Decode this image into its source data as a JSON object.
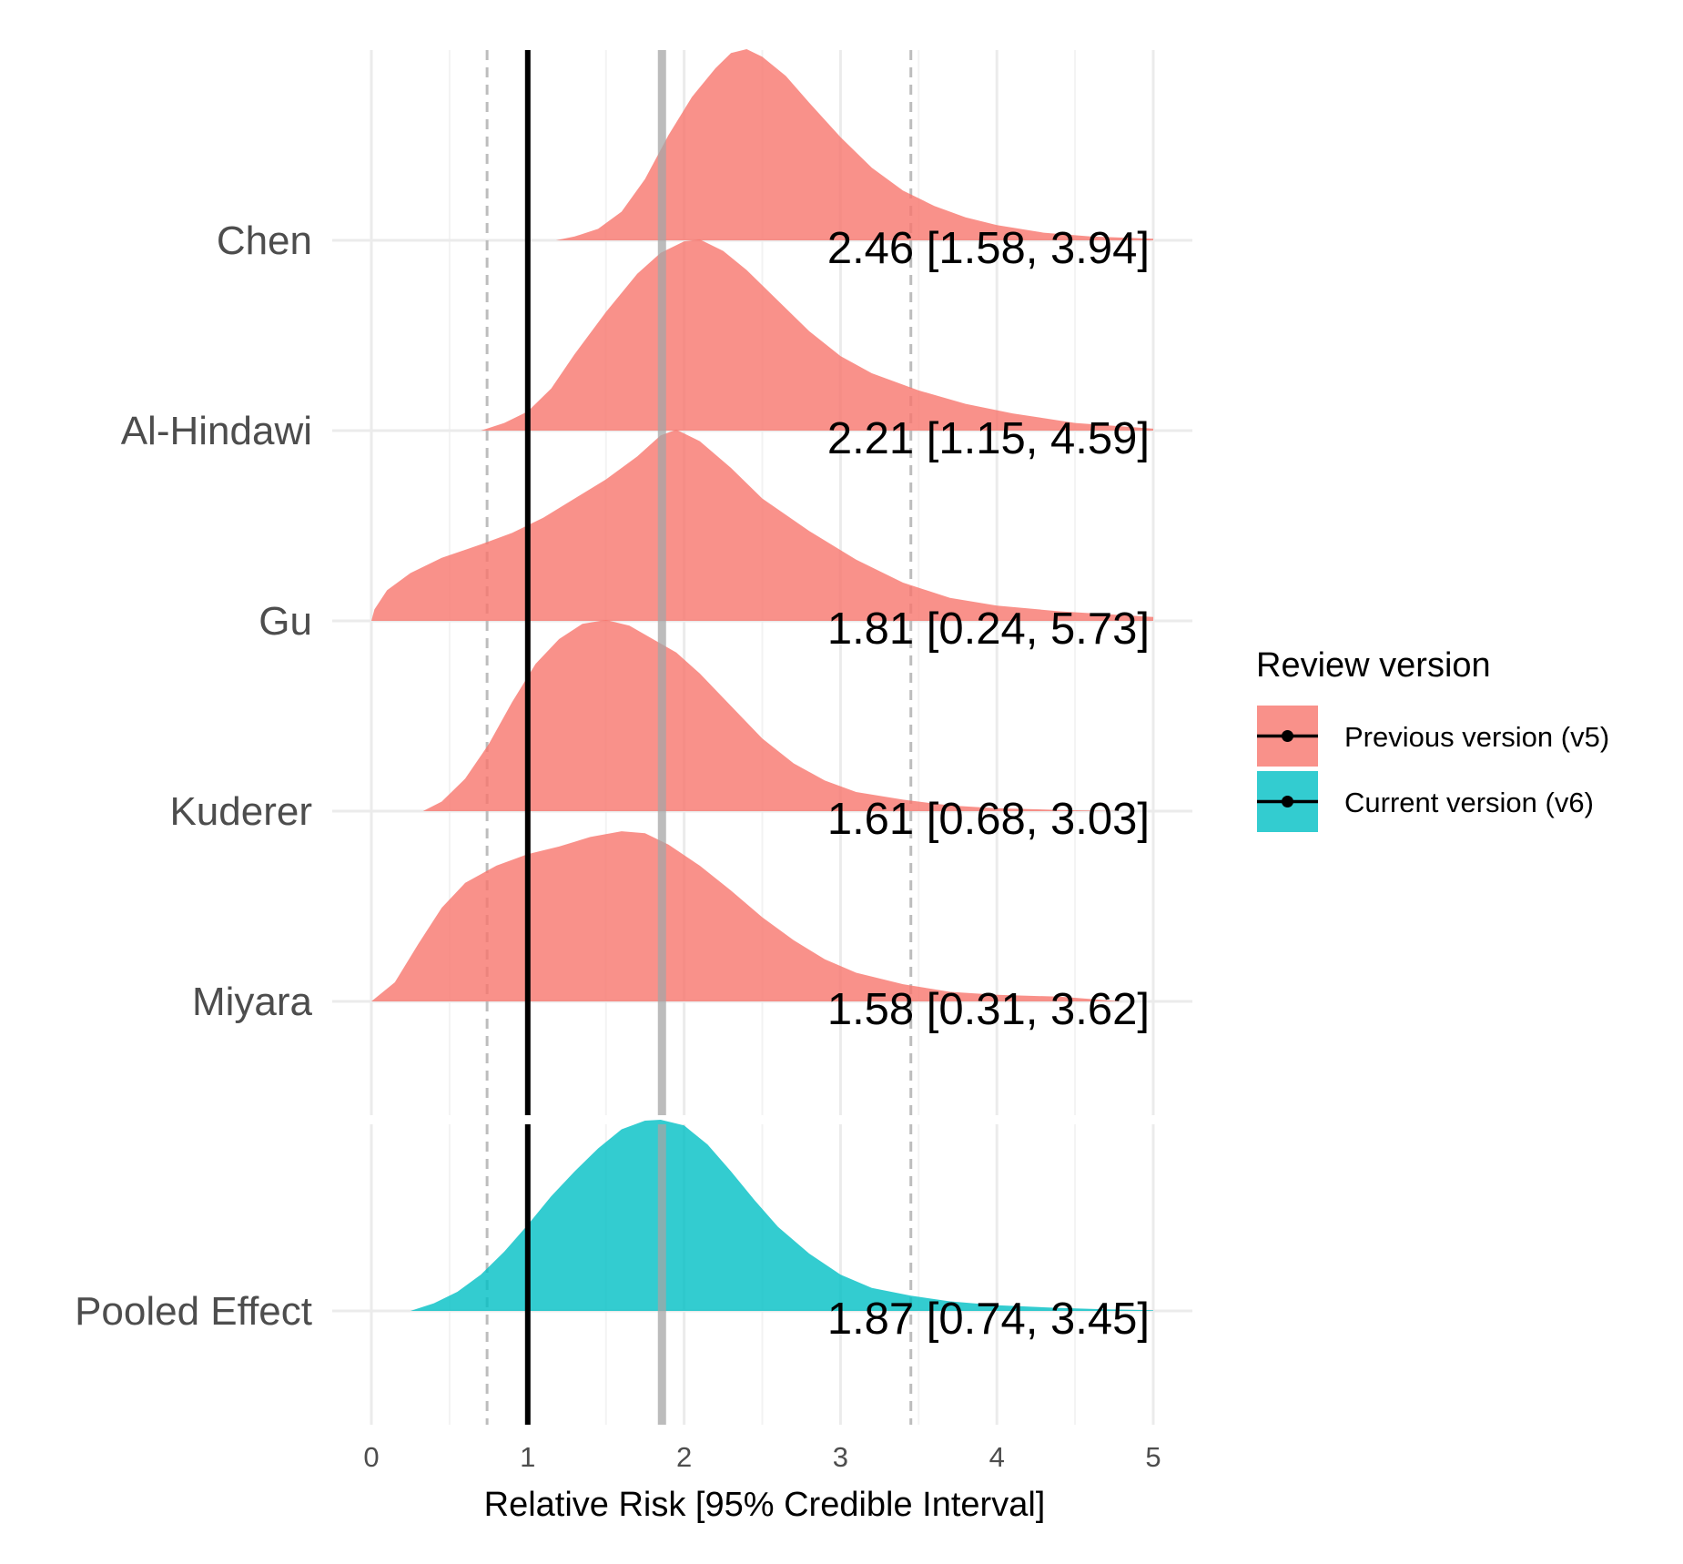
{
  "chart_data": {
    "type": "density-ridge",
    "title": "",
    "xlabel": "Relative Risk [95% Credible Interval]",
    "ylabel": "",
    "xlim": [
      0,
      5
    ],
    "x_ticks": [
      "0",
      "1",
      "2",
      "3",
      "4",
      "5"
    ],
    "grid": true,
    "legend": {
      "title": "Review version",
      "position": "right",
      "entries": [
        {
          "label": "Previous version (v5)",
          "color": "#F8766D"
        },
        {
          "label": "Current version (v6)",
          "color": "#00BFC4"
        }
      ]
    },
    "reference_lines": {
      "null_effect": 1.0,
      "pooled_estimate": 1.87,
      "pooled_ci_lower": 0.74,
      "pooled_ci_upper": 3.45
    },
    "series": [
      {
        "name": "Chen",
        "group": "Previous version (v5)",
        "estimate": 2.46,
        "lower": 1.58,
        "upper": 3.94,
        "label": "2.46 [1.58, 3.94]",
        "range": [
          1.18,
          5.0
        ],
        "density": [
          [
            1.18,
            0.0
          ],
          [
            1.3,
            0.02
          ],
          [
            1.45,
            0.06
          ],
          [
            1.6,
            0.15
          ],
          [
            1.75,
            0.32
          ],
          [
            1.9,
            0.55
          ],
          [
            2.05,
            0.75
          ],
          [
            2.2,
            0.9
          ],
          [
            2.3,
            0.98
          ],
          [
            2.4,
            1.0
          ],
          [
            2.5,
            0.96
          ],
          [
            2.65,
            0.86
          ],
          [
            2.8,
            0.72
          ],
          [
            3.0,
            0.54
          ],
          [
            3.2,
            0.38
          ],
          [
            3.4,
            0.26
          ],
          [
            3.6,
            0.18
          ],
          [
            3.8,
            0.12
          ],
          [
            4.0,
            0.08
          ],
          [
            4.3,
            0.04
          ],
          [
            4.6,
            0.02
          ],
          [
            5.0,
            0.008
          ]
        ]
      },
      {
        "name": "Al-Hindawi",
        "group": "Previous version (v5)",
        "estimate": 2.21,
        "lower": 1.15,
        "upper": 4.59,
        "label": "2.21 [1.15, 4.59]",
        "range": [
          0.7,
          5.0
        ],
        "density": [
          [
            0.7,
            0.0
          ],
          [
            0.85,
            0.04
          ],
          [
            1.0,
            0.1
          ],
          [
            1.15,
            0.22
          ],
          [
            1.3,
            0.4
          ],
          [
            1.5,
            0.62
          ],
          [
            1.7,
            0.82
          ],
          [
            1.85,
            0.93
          ],
          [
            2.0,
            0.99
          ],
          [
            2.1,
            1.0
          ],
          [
            2.25,
            0.94
          ],
          [
            2.4,
            0.84
          ],
          [
            2.6,
            0.68
          ],
          [
            2.8,
            0.52
          ],
          [
            3.0,
            0.39
          ],
          [
            3.2,
            0.3
          ],
          [
            3.5,
            0.21
          ],
          [
            3.8,
            0.14
          ],
          [
            4.1,
            0.09
          ],
          [
            4.5,
            0.04
          ],
          [
            5.0,
            0.01
          ]
        ]
      },
      {
        "name": "Gu",
        "group": "Previous version (v5)",
        "estimate": 1.81,
        "lower": 0.24,
        "upper": 5.73,
        "label": "1.81 [0.24, 5.73]",
        "range": [
          0.0,
          5.0
        ],
        "density": [
          [
            0.0,
            0.0
          ],
          [
            0.02,
            0.06
          ],
          [
            0.1,
            0.16
          ],
          [
            0.25,
            0.25
          ],
          [
            0.45,
            0.33
          ],
          [
            0.7,
            0.4
          ],
          [
            0.9,
            0.46
          ],
          [
            1.1,
            0.54
          ],
          [
            1.3,
            0.64
          ],
          [
            1.5,
            0.74
          ],
          [
            1.7,
            0.86
          ],
          [
            1.85,
            0.97
          ],
          [
            1.95,
            1.0
          ],
          [
            2.1,
            0.94
          ],
          [
            2.3,
            0.8
          ],
          [
            2.5,
            0.64
          ],
          [
            2.8,
            0.47
          ],
          [
            3.1,
            0.32
          ],
          [
            3.4,
            0.2
          ],
          [
            3.7,
            0.12
          ],
          [
            4.0,
            0.08
          ],
          [
            4.4,
            0.05
          ],
          [
            4.7,
            0.035
          ],
          [
            5.0,
            0.02
          ]
        ]
      },
      {
        "name": "Kuderer",
        "group": "Previous version (v5)",
        "estimate": 1.61,
        "lower": 0.68,
        "upper": 3.03,
        "label": "1.61 [0.68, 3.03]",
        "range": [
          0.33,
          4.8
        ],
        "density": [
          [
            0.33,
            0.0
          ],
          [
            0.45,
            0.05
          ],
          [
            0.6,
            0.17
          ],
          [
            0.75,
            0.35
          ],
          [
            0.9,
            0.57
          ],
          [
            1.05,
            0.77
          ],
          [
            1.2,
            0.9
          ],
          [
            1.35,
            0.98
          ],
          [
            1.5,
            1.0
          ],
          [
            1.65,
            0.97
          ],
          [
            1.8,
            0.9
          ],
          [
            1.95,
            0.83
          ],
          [
            2.1,
            0.72
          ],
          [
            2.3,
            0.55
          ],
          [
            2.5,
            0.38
          ],
          [
            2.7,
            0.25
          ],
          [
            2.9,
            0.16
          ],
          [
            3.1,
            0.1
          ],
          [
            3.4,
            0.06
          ],
          [
            3.7,
            0.03
          ],
          [
            4.0,
            0.015
          ],
          [
            4.4,
            0.006
          ],
          [
            4.8,
            0.0
          ]
        ]
      },
      {
        "name": "Miyara",
        "group": "Previous version (v5)",
        "estimate": 1.58,
        "lower": 0.31,
        "upper": 3.62,
        "label": "1.58 [0.31, 3.62]",
        "range": [
          0.0,
          4.8
        ],
        "density": [
          [
            0.0,
            0.0
          ],
          [
            0.15,
            0.1
          ],
          [
            0.3,
            0.3
          ],
          [
            0.45,
            0.49
          ],
          [
            0.6,
            0.62
          ],
          [
            0.8,
            0.71
          ],
          [
            1.0,
            0.77
          ],
          [
            1.2,
            0.81
          ],
          [
            1.4,
            0.86
          ],
          [
            1.6,
            0.89
          ],
          [
            1.75,
            0.88
          ],
          [
            1.9,
            0.82
          ],
          [
            2.1,
            0.71
          ],
          [
            2.3,
            0.58
          ],
          [
            2.5,
            0.44
          ],
          [
            2.7,
            0.32
          ],
          [
            2.9,
            0.22
          ],
          [
            3.1,
            0.15
          ],
          [
            3.4,
            0.09
          ],
          [
            3.7,
            0.05
          ],
          [
            4.0,
            0.035
          ],
          [
            4.4,
            0.025
          ],
          [
            4.8,
            0.0
          ]
        ]
      },
      {
        "name": "Pooled Effect",
        "group": "Current version (v6)",
        "estimate": 1.87,
        "lower": 0.74,
        "upper": 3.45,
        "label": "1.87 [0.74, 3.45]",
        "range": [
          0.25,
          5.0
        ],
        "density": [
          [
            0.25,
            0.0
          ],
          [
            0.4,
            0.04
          ],
          [
            0.55,
            0.1
          ],
          [
            0.7,
            0.19
          ],
          [
            0.85,
            0.31
          ],
          [
            1.0,
            0.45
          ],
          [
            1.15,
            0.6
          ],
          [
            1.3,
            0.73
          ],
          [
            1.45,
            0.85
          ],
          [
            1.6,
            0.95
          ],
          [
            1.75,
            0.995
          ],
          [
            1.85,
            1.0
          ],
          [
            2.0,
            0.97
          ],
          [
            2.15,
            0.87
          ],
          [
            2.3,
            0.73
          ],
          [
            2.45,
            0.58
          ],
          [
            2.6,
            0.44
          ],
          [
            2.8,
            0.3
          ],
          [
            3.0,
            0.19
          ],
          [
            3.2,
            0.12
          ],
          [
            3.45,
            0.08
          ],
          [
            3.7,
            0.05
          ],
          [
            4.0,
            0.03
          ],
          [
            4.4,
            0.015
          ],
          [
            4.7,
            0.008
          ],
          [
            5.0,
            0.004
          ]
        ]
      }
    ]
  }
}
